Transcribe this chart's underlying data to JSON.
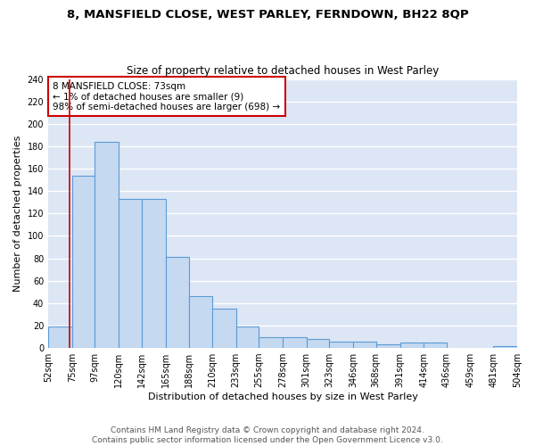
{
  "title1": "8, MANSFIELD CLOSE, WEST PARLEY, FERNDOWN, BH22 8QP",
  "title2": "Size of property relative to detached houses in West Parley",
  "xlabel": "Distribution of detached houses by size in West Parley",
  "ylabel": "Number of detached properties",
  "bar_edge_color": "#5b9bd5",
  "bar_face_color": "#c5d9f1",
  "background_color": "#dce6f5",
  "grid_color": "#ffffff",
  "annotation_text": "8 MANSFIELD CLOSE: 73sqm\n← 1% of detached houses are smaller (9)\n98% of semi-detached houses are larger (698) →",
  "annotation_box_color": "#ffffff",
  "annotation_box_edge": "#cc0000",
  "vline_x": 73,
  "vline_color": "#cc0000",
  "bin_edges": [
    52,
    75,
    97,
    120,
    142,
    165,
    188,
    210,
    233,
    255,
    278,
    301,
    323,
    346,
    368,
    391,
    414,
    436,
    459,
    481,
    504
  ],
  "bin_labels": [
    "52sqm",
    "75sqm",
    "97sqm",
    "120sqm",
    "142sqm",
    "165sqm",
    "188sqm",
    "210sqm",
    "233sqm",
    "255sqm",
    "278sqm",
    "301sqm",
    "323sqm",
    "346sqm",
    "368sqm",
    "391sqm",
    "414sqm",
    "436sqm",
    "459sqm",
    "481sqm",
    "504sqm"
  ],
  "bar_heights": [
    19,
    154,
    184,
    133,
    133,
    81,
    46,
    35,
    19,
    10,
    10,
    8,
    6,
    6,
    3,
    5,
    5,
    0,
    0,
    2
  ],
  "ylim": [
    0,
    240
  ],
  "yticks": [
    0,
    20,
    40,
    60,
    80,
    100,
    120,
    140,
    160,
    180,
    200,
    220,
    240
  ],
  "footnote": "Contains HM Land Registry data © Crown copyright and database right 2024.\nContains public sector information licensed under the Open Government Licence v3.0.",
  "title_fontsize": 9.5,
  "subtitle_fontsize": 8.5,
  "axis_label_fontsize": 8,
  "tick_fontsize": 7,
  "footnote_fontsize": 6.5
}
